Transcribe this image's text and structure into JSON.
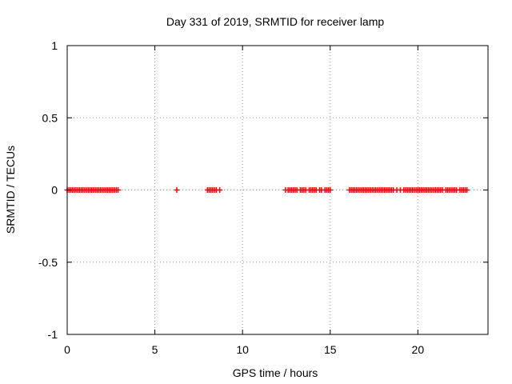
{
  "chart_data": {
    "type": "scatter",
    "title": "Day 331 of 2019, SRMTID for receiver lamp",
    "xlabel": "GPS time / hours",
    "ylabel": "SRMTID / TECUs",
    "xlim": [
      0,
      24
    ],
    "ylim": [
      -1,
      1
    ],
    "xticks": [
      0,
      5,
      10,
      15,
      20
    ],
    "xtick_labels": [
      "0",
      "5",
      "10",
      "15",
      "20"
    ],
    "yticks": [
      -1,
      -0.5,
      0,
      0.5,
      1
    ],
    "ytick_labels": [
      "-1",
      "-0.5",
      "0",
      "0.5",
      "1"
    ],
    "grid": true,
    "marker": "+",
    "color": "#ff0000",
    "series": [
      {
        "name": "SRMTID",
        "x": [
          0.0,
          0.1,
          0.2,
          0.3,
          0.4,
          0.5,
          0.6,
          0.7,
          0.8,
          0.9,
          1.0,
          1.1,
          1.2,
          1.3,
          1.4,
          1.5,
          1.6,
          1.7,
          1.8,
          1.9,
          2.0,
          2.1,
          2.2,
          2.3,
          2.4,
          2.5,
          2.6,
          2.7,
          2.8,
          2.9,
          6.25,
          8.0,
          8.1,
          8.2,
          8.3,
          8.4,
          8.5,
          8.7,
          12.45,
          12.6,
          12.7,
          12.8,
          12.9,
          13.0,
          13.1,
          13.3,
          13.4,
          13.5,
          13.6,
          13.8,
          13.9,
          14.0,
          14.1,
          14.2,
          14.4,
          14.5,
          14.7,
          14.8,
          14.9,
          15.0,
          16.1,
          16.2,
          16.3,
          16.4,
          16.5,
          16.6,
          16.7,
          16.8,
          16.9,
          17.0,
          17.1,
          17.2,
          17.3,
          17.4,
          17.5,
          17.6,
          17.7,
          17.8,
          17.9,
          18.0,
          18.1,
          18.2,
          18.3,
          18.4,
          18.5,
          18.6,
          18.8,
          19.0,
          19.2,
          19.3,
          19.4,
          19.5,
          19.6,
          19.7,
          19.8,
          19.9,
          20.0,
          20.1,
          20.2,
          20.3,
          20.4,
          20.5,
          20.6,
          20.7,
          20.8,
          20.9,
          21.0,
          21.1,
          21.2,
          21.3,
          21.4,
          21.6,
          21.7,
          21.8,
          21.9,
          22.0,
          22.1,
          22.2,
          22.4,
          22.5,
          22.6,
          22.7,
          22.8
        ],
        "y": [
          0,
          0,
          0,
          0,
          0,
          0,
          0,
          0,
          0,
          0,
          0,
          0,
          0,
          0,
          0,
          0,
          0,
          0,
          0,
          0,
          0,
          0,
          0,
          0,
          0,
          0,
          0,
          0,
          0,
          0,
          0,
          0,
          0,
          0,
          0,
          0,
          0,
          0,
          0,
          0,
          0,
          0,
          0,
          0,
          0,
          0,
          0,
          0,
          0,
          0,
          0,
          0,
          0,
          0,
          0,
          0,
          0,
          0,
          0,
          0,
          0,
          0,
          0,
          0,
          0,
          0,
          0,
          0,
          0,
          0,
          0,
          0,
          0,
          0,
          0,
          0,
          0,
          0,
          0,
          0,
          0,
          0,
          0,
          0,
          0,
          0,
          0,
          0,
          0,
          0,
          0,
          0,
          0,
          0,
          0,
          0,
          0,
          0,
          0,
          0,
          0,
          0,
          0,
          0,
          0,
          0,
          0,
          0,
          0,
          0,
          0,
          0,
          0,
          0,
          0,
          0,
          0,
          0,
          0,
          0,
          0,
          0,
          0
        ]
      }
    ]
  }
}
